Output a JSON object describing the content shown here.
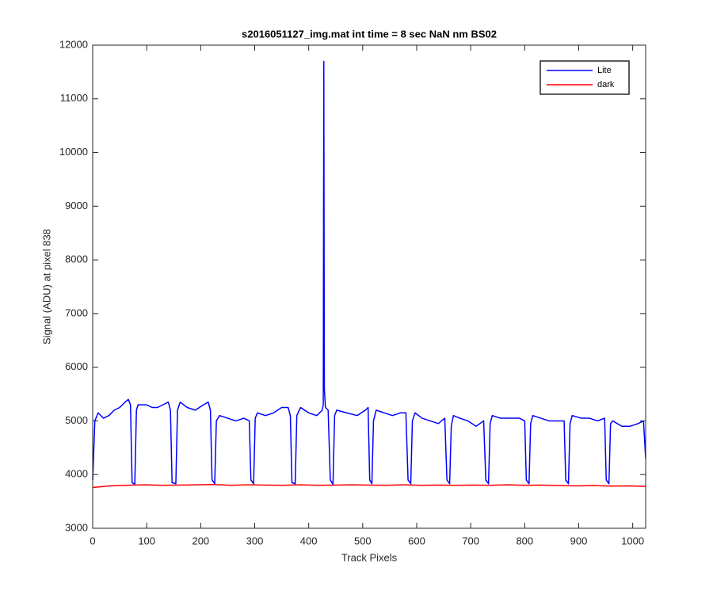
{
  "chart_data": {
    "type": "line",
    "title": "s2016051127_img.mat int time = 8 sec  NaN nm BS02",
    "x_label": "Track Pixels",
    "y_label": "Signal (ADU) at pixel 838",
    "xlim": [
      0,
      1024
    ],
    "ylim": [
      3000,
      12000
    ],
    "xticks": [
      0,
      100,
      200,
      300,
      400,
      500,
      600,
      700,
      800,
      900,
      1000
    ],
    "yticks": [
      3000,
      4000,
      5000,
      6000,
      7000,
      8000,
      9000,
      10000,
      11000,
      12000
    ],
    "grid": false,
    "legend": "upper right",
    "series": [
      {
        "name": "Lite",
        "color": "#0000ff",
        "x": [
          0,
          4,
          10,
          20,
          30,
          40,
          50,
          60,
          66,
          70,
          73,
          78,
          81,
          84,
          100,
          110,
          120,
          130,
          140,
          144,
          147,
          154,
          157,
          162,
          175,
          190,
          205,
          214,
          218,
          221,
          226,
          229,
          235,
          250,
          265,
          280,
          290,
          293,
          298,
          301,
          305,
          320,
          335,
          350,
          362,
          366,
          369,
          375,
          378,
          385,
          400,
          415,
          425,
          427,
          428,
          429,
          431,
          436,
          440,
          445,
          448,
          452,
          470,
          490,
          505,
          510,
          513,
          517,
          520,
          525,
          540,
          555,
          570,
          580,
          584,
          589,
          592,
          597,
          610,
          625,
          640,
          652,
          656,
          661,
          664,
          668,
          680,
          695,
          710,
          724,
          728,
          733,
          736,
          740,
          755,
          770,
          790,
          800,
          803,
          808,
          811,
          815,
          830,
          845,
          860,
          873,
          876,
          881,
          884,
          888,
          905,
          920,
          935,
          948,
          951,
          956,
          959,
          963,
          980,
          995,
          1010,
          1020,
          1024
        ],
        "values": [
          3900,
          5000,
          5150,
          5050,
          5100,
          5200,
          5250,
          5350,
          5400,
          5300,
          3850,
          3820,
          5200,
          5300,
          5300,
          5250,
          5250,
          5300,
          5350,
          5200,
          3850,
          3830,
          5200,
          5350,
          5250,
          5200,
          5300,
          5350,
          5200,
          3900,
          3830,
          5000,
          5100,
          5050,
          5000,
          5050,
          5000,
          3900,
          3830,
          5050,
          5150,
          5100,
          5150,
          5250,
          5250,
          5100,
          3850,
          3830,
          5100,
          5250,
          5150,
          5100,
          5200,
          5300,
          11700,
          5600,
          5250,
          5200,
          3900,
          3820,
          5100,
          5200,
          5150,
          5100,
          5200,
          5250,
          3900,
          3830,
          5000,
          5200,
          5150,
          5100,
          5150,
          5150,
          3900,
          3830,
          5000,
          5150,
          5050,
          5000,
          4950,
          5050,
          3900,
          3830,
          4900,
          5100,
          5050,
          5000,
          4900,
          5000,
          3900,
          3830,
          4950,
          5100,
          5050,
          5050,
          5050,
          5000,
          3900,
          3830,
          4950,
          5100,
          5050,
          5000,
          5000,
          5000,
          3900,
          3830,
          4950,
          5100,
          5050,
          5050,
          5000,
          5050,
          3900,
          3830,
          4950,
          5000,
          4900,
          4900,
          4950,
          5000,
          4300
        ]
      },
      {
        "name": "dark",
        "color": "#ff0000",
        "x": [
          0,
          32,
          64,
          96,
          128,
          160,
          192,
          224,
          256,
          288,
          320,
          352,
          384,
          416,
          448,
          480,
          512,
          544,
          576,
          608,
          640,
          672,
          704,
          736,
          768,
          800,
          832,
          864,
          896,
          928,
          960,
          992,
          1024
        ],
        "values": [
          3760,
          3790,
          3800,
          3810,
          3800,
          3805,
          3810,
          3815,
          3800,
          3810,
          3805,
          3800,
          3810,
          3800,
          3805,
          3810,
          3805,
          3800,
          3810,
          3800,
          3805,
          3800,
          3805,
          3800,
          3810,
          3800,
          3805,
          3795,
          3790,
          3795,
          3785,
          3790,
          3780
        ]
      }
    ]
  }
}
